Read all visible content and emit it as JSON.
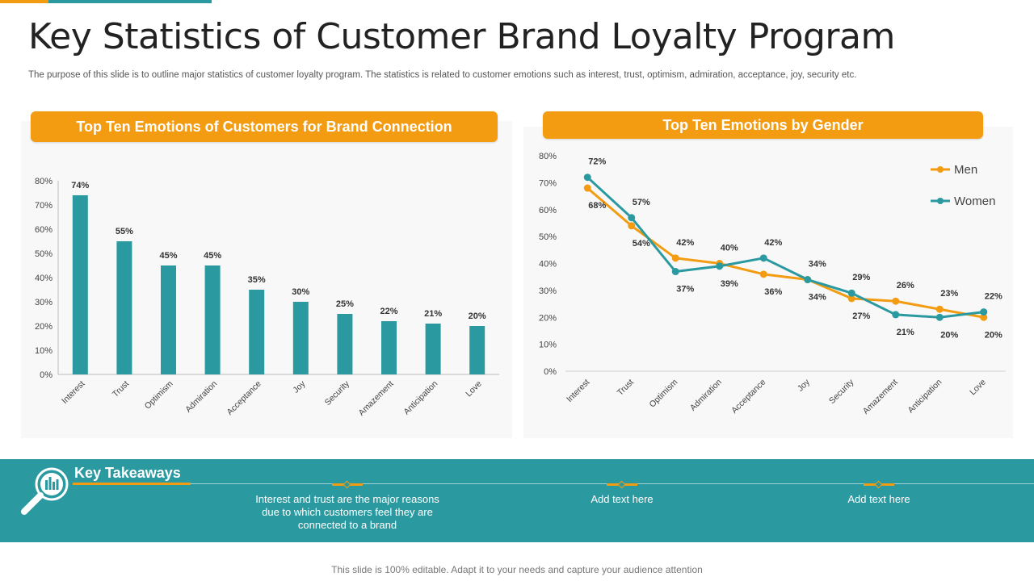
{
  "page": {
    "title": "Key Statistics of Customer Brand Loyalty Program",
    "subtitle": "The purpose of this slide is to outline major statistics of customer loyalty program. The statistics is related to customer emotions such as interest, trust, optimism, admiration, acceptance, joy, security etc.",
    "footer": "This slide is 100% editable. Adapt it to your  needs and capture your audience attention"
  },
  "colors": {
    "accent_orange": "#f39c12",
    "accent_teal": "#2b9aa0",
    "men_line": "#f39c12",
    "women_line": "#2b9aa0"
  },
  "key_takeaways": {
    "title": "Key Takeaways",
    "icon": "magnifier-chart-icon",
    "items": [
      "Interest and trust are the major reasons due to which customers feel they are connected to a brand",
      "Add text here",
      "Add text here"
    ]
  },
  "chart_data": [
    {
      "type": "bar",
      "title": "Top Ten Emotions of Customers for Brand Connection",
      "categories": [
        "Interest",
        "Trust",
        "Optimism",
        "Admiration",
        "Acceptance",
        "Joy",
        "Security",
        "Amazement",
        "Anticipation",
        "Love"
      ],
      "values": [
        74,
        55,
        45,
        45,
        35,
        30,
        25,
        22,
        21,
        20
      ],
      "value_labels": [
        "74%",
        "55%",
        "45%",
        "45%",
        "35%",
        "30%",
        "25%",
        "22%",
        "21%",
        "20%"
      ],
      "ylim": [
        0,
        80
      ],
      "yticks": [
        "0%",
        "10%",
        "20%",
        "30%",
        "40%",
        "50%",
        "60%",
        "70%",
        "80%"
      ],
      "xlabel": "",
      "ylabel": "",
      "grid": false
    },
    {
      "type": "line",
      "title": "Top Ten Emotions by Gender",
      "categories": [
        "Interest",
        "Trust",
        "Optimism",
        "Admiration",
        "Acceptance",
        "Joy",
        "Security",
        "Amazement",
        "Anticipation",
        "Love"
      ],
      "series": [
        {
          "name": "Men",
          "values": [
            68,
            54,
            42,
            40,
            36,
            34,
            27,
            26,
            23,
            20
          ],
          "labels": [
            "68%",
            "54%",
            "42%",
            "40%",
            "36%",
            "34%",
            "27%",
            "26%",
            "23%",
            "20%"
          ]
        },
        {
          "name": "Women",
          "values": [
            72,
            57,
            37,
            39,
            42,
            34,
            29,
            21,
            20,
            22
          ],
          "labels": [
            "72%",
            "57%",
            "37%",
            "39%",
            "42%",
            "34%",
            "29%",
            "21%",
            "20%",
            "22%"
          ]
        }
      ],
      "ylim": [
        0,
        80
      ],
      "yticks": [
        "0%",
        "10%",
        "20%",
        "30%",
        "40%",
        "50%",
        "60%",
        "70%",
        "80%"
      ],
      "legend": "top-right",
      "xlabel": "",
      "ylabel": "",
      "grid": false
    }
  ]
}
